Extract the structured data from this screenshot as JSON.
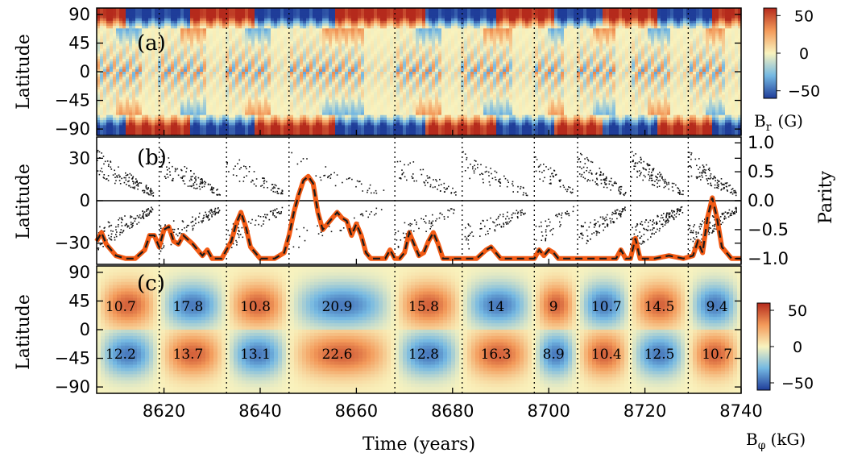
{
  "colors": {
    "red": "#c1311f",
    "blue": "#244fa3",
    "yellow": "#f9f3be",
    "orange_line": "#f25a14"
  },
  "x_ticks": [
    "8620",
    "8640",
    "8660",
    "8680",
    "8700",
    "8720",
    "8740"
  ],
  "xlabel": "Time (years)",
  "chart_data": [
    {
      "type": "heatmap",
      "panel_label": "(a)",
      "ylabel": "Latitude",
      "xlim": [
        8606,
        8740
      ],
      "ylim": [
        -100,
        100
      ],
      "y_ticks": [
        "90",
        "45",
        "0",
        "−45",
        "−90"
      ],
      "y_tick_values": [
        90,
        45,
        0,
        -45,
        -90
      ],
      "colorbar": {
        "label": "B",
        "label_sub": "r",
        "unit": "(G)",
        "ticks": [
          "50",
          "0",
          "−50"
        ],
        "range": [
          -60,
          60
        ]
      },
      "cycle_boundaries": [
        8619,
        8633,
        8646,
        8668,
        8682,
        8697,
        8706,
        8717,
        8729
      ]
    },
    {
      "type": "scatter",
      "panel_label": "(b)",
      "ylabel": "Latitude",
      "ylabel_right": "Parity",
      "ylim": [
        -45,
        45
      ],
      "y_ticks": [
        "30",
        "0",
        "−30"
      ],
      "y_tick_values": [
        30,
        0,
        -30
      ],
      "right_ylim": [
        -1.1,
        1.1
      ],
      "right_ticks": [
        "1.0",
        "0.5",
        "0.0",
        "−0.5",
        "−1.0"
      ],
      "right_tick_values": [
        1.0,
        0.5,
        0.0,
        -0.5,
        -1.0
      ],
      "series": [
        {
          "type": "line",
          "x": [
            8606,
            8607,
            8608,
            8610,
            8612,
            8614,
            8616,
            8617,
            8618,
            8619,
            8620,
            8621,
            8622,
            8623,
            8624,
            8626,
            8628,
            8629,
            8630,
            8632,
            8634,
            8635,
            8636,
            8637,
            8638,
            8640,
            8643,
            8645,
            8646,
            8647,
            8648,
            8649,
            8650,
            8651,
            8652,
            8653,
            8654,
            8655,
            8656,
            8657,
            8658,
            8659,
            8660,
            8661,
            8662,
            8663,
            8664,
            8666,
            8667,
            8668,
            8669,
            8670,
            8671,
            8672,
            8673,
            8674,
            8675,
            8676,
            8677,
            8678,
            8680,
            8685,
            8687,
            8688,
            8689,
            8690,
            8692,
            8695,
            8697,
            8698,
            8699,
            8700,
            8701,
            8702,
            8703,
            8705,
            8710,
            8714,
            8715,
            8716,
            8717,
            8718,
            8719,
            8722,
            8725,
            8728,
            8730,
            8731,
            8732,
            8733,
            8734,
            8735,
            8736,
            8738,
            8740
          ],
          "y": [
            -0.7,
            -0.55,
            -0.75,
            -0.95,
            -1.0,
            -1.0,
            -0.85,
            -0.6,
            -0.6,
            -0.8,
            -0.5,
            -0.45,
            -0.7,
            -0.75,
            -0.6,
            -0.75,
            -0.95,
            -0.85,
            -1.0,
            -1.0,
            -0.7,
            -0.4,
            -0.2,
            -0.45,
            -0.8,
            -1.0,
            -1.0,
            -0.9,
            -0.6,
            -0.2,
            0.1,
            0.35,
            0.42,
            0.3,
            -0.2,
            -0.5,
            -0.4,
            -0.3,
            -0.2,
            -0.3,
            -0.35,
            -0.6,
            -0.4,
            -0.6,
            -0.9,
            -1.0,
            -1.0,
            -1.0,
            -0.85,
            -1.0,
            -1.0,
            -0.9,
            -0.55,
            -0.75,
            -0.95,
            -0.9,
            -0.7,
            -0.55,
            -0.75,
            -1.0,
            -1.0,
            -1.0,
            -0.85,
            -0.8,
            -0.9,
            -1.0,
            -1.0,
            -1.0,
            -1.0,
            -0.85,
            -0.95,
            -0.85,
            -0.9,
            -1.0,
            -1.0,
            -1.0,
            -1.0,
            -1.0,
            -0.85,
            -1.0,
            -1.0,
            -0.65,
            -1.0,
            -1.0,
            -0.95,
            -1.0,
            -0.95,
            -0.7,
            -0.9,
            -0.3,
            0.05,
            -0.3,
            -0.8,
            -1.0,
            -1.0
          ]
        }
      ]
    },
    {
      "type": "heatmap",
      "panel_label": "(c)",
      "ylabel": "Latitude",
      "ylim": [
        -100,
        100
      ],
      "y_ticks": [
        "90",
        "45",
        "0",
        "−45",
        "−90"
      ],
      "y_tick_values": [
        90,
        45,
        0,
        -45,
        -90
      ],
      "colorbar": {
        "label": "B",
        "label_sub": "φ",
        "unit": "(kG)",
        "ticks": [
          "50",
          "0",
          "−50"
        ],
        "range": [
          -60,
          60
        ]
      },
      "annotations_north": [
        {
          "x": 8611,
          "text": "10.7"
        },
        {
          "x": 8625,
          "text": "17.8"
        },
        {
          "x": 8639,
          "text": "10.8"
        },
        {
          "x": 8656,
          "text": "20.9"
        },
        {
          "x": 8674,
          "text": "15.8"
        },
        {
          "x": 8689,
          "text": "14"
        },
        {
          "x": 8701,
          "text": "9"
        },
        {
          "x": 8712,
          "text": "10.7"
        },
        {
          "x": 8723,
          "text": "14.5"
        },
        {
          "x": 8735,
          "text": "9.4"
        }
      ],
      "annotations_south": [
        {
          "x": 8611,
          "text": "12.2"
        },
        {
          "x": 8625,
          "text": "13.7"
        },
        {
          "x": 8639,
          "text": "13.1"
        },
        {
          "x": 8656,
          "text": "22.6"
        },
        {
          "x": 8674,
          "text": "12.8"
        },
        {
          "x": 8689,
          "text": "16.3"
        },
        {
          "x": 8701,
          "text": "8.9"
        },
        {
          "x": 8712,
          "text": "10.4"
        },
        {
          "x": 8723,
          "text": "12.5"
        },
        {
          "x": 8735,
          "text": "10.7"
        }
      ]
    }
  ]
}
